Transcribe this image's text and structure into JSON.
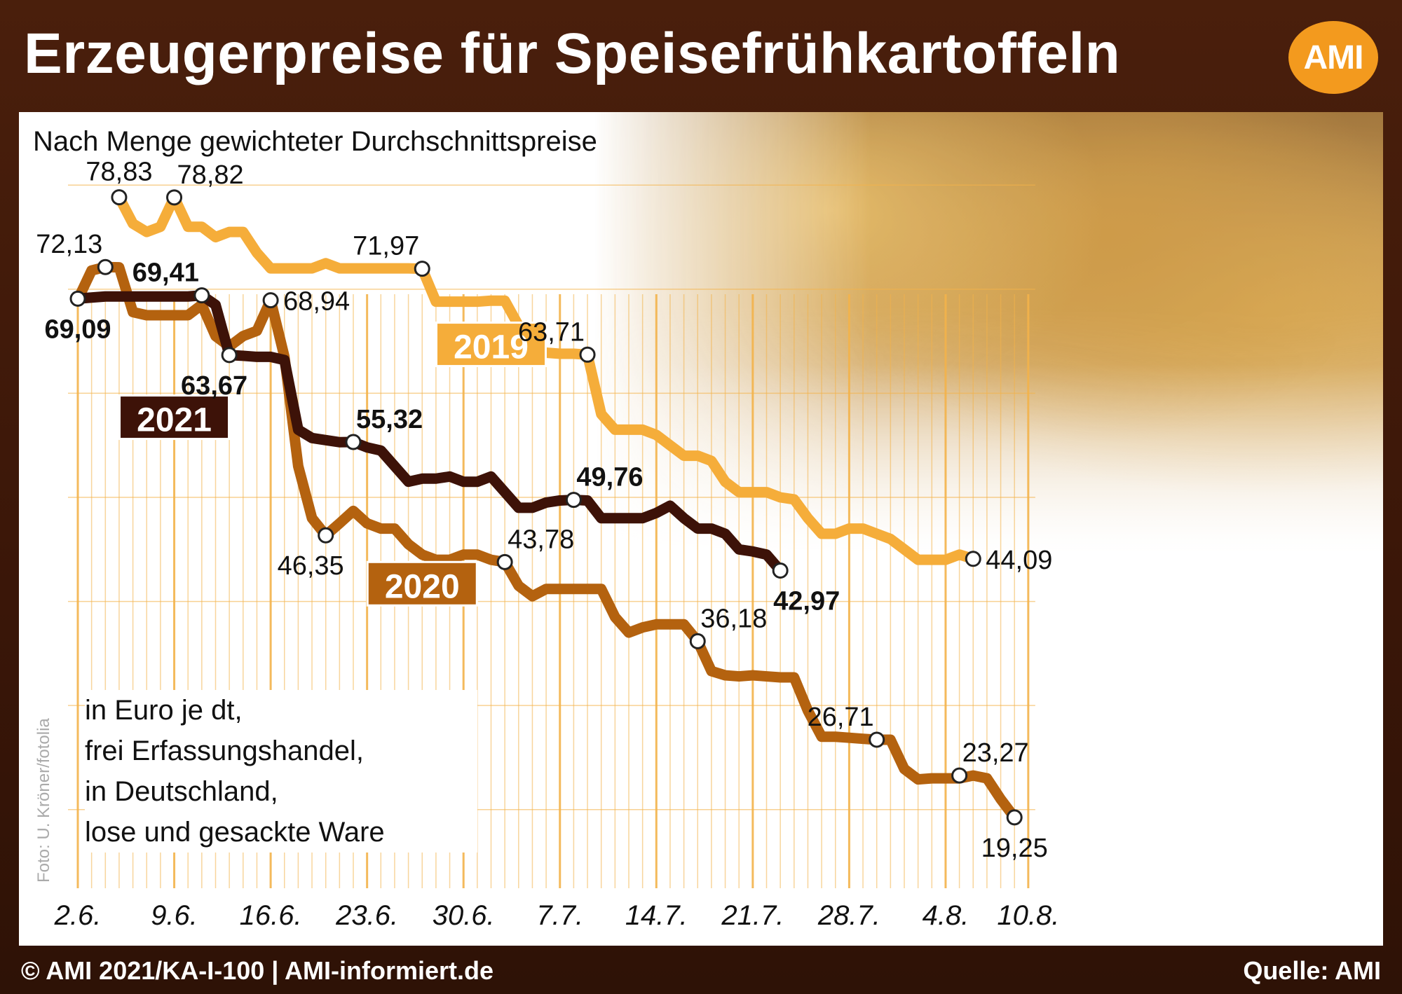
{
  "title": "Erzeugerpreise für Speisefrühkartoffeln",
  "logo": "AMI",
  "subtitle": "Nach Menge gewichteter Durchschnittspreise",
  "unit_note": [
    "in Euro je dt,",
    "frei Erfassungshandel,",
    "in Deutschland,",
    "lose und gesackte Ware"
  ],
  "photo_credit": "Foto: U. Kröner/fotolia",
  "footer_left": "© AMI 2021/KA-I-100 | AMI-informiert.de",
  "footer_right": "Quelle: AMI",
  "colors": {
    "y2019": "#f5ad3a",
    "y2020": "#b4620f",
    "y2021": "#3d1208",
    "grid": "#f3b24a",
    "brand": "#f39a1e"
  },
  "chart_data": {
    "type": "line",
    "title": "Erzeugerpreise für Speisefrühkartoffeln",
    "subtitle": "Nach Menge gewichteter Durchschnittspreise",
    "ylabel": "in Euro je dt",
    "x_tick_labels": [
      "2.6.",
      "9.6.",
      "16.6.",
      "23.6.",
      "30.6.",
      "7.7.",
      "14.7.",
      "21.7.",
      "28.7.",
      "4.8.",
      "10.8."
    ],
    "x_ticks_day": [
      0,
      7,
      14,
      21,
      28,
      35,
      42,
      49,
      56,
      63,
      69
    ],
    "x_unit": "days after 31.5.",
    "ylim": [
      15,
      85
    ],
    "grid": true,
    "series": [
      {
        "name": "2019",
        "label_weight": "normal",
        "x": [
          3,
          4,
          5,
          6,
          7,
          8,
          9,
          10,
          11,
          12,
          13,
          14,
          15,
          16,
          17,
          18,
          19,
          20,
          21,
          22,
          23,
          24,
          25,
          26,
          27,
          28,
          29,
          30,
          31,
          32,
          33,
          34,
          35,
          36,
          37,
          38,
          39,
          40,
          41,
          42,
          43,
          44,
          45,
          46,
          47,
          48,
          49,
          50,
          51,
          52,
          53,
          54,
          55,
          56,
          57,
          58,
          59,
          60,
          61,
          62,
          63,
          64,
          65
        ],
        "values": [
          78.83,
          76.3,
          75.5,
          76.0,
          78.82,
          76.0,
          76.0,
          75.0,
          75.5,
          75.5,
          73.5,
          72.0,
          72.0,
          72.0,
          72.0,
          72.5,
          72.0,
          72.0,
          72.0,
          72.0,
          72.0,
          72.0,
          71.97,
          68.8,
          68.8,
          68.8,
          68.8,
          68.9,
          68.9,
          66.5,
          64.0,
          63.9,
          63.8,
          63.8,
          63.71,
          58.0,
          56.5,
          56.5,
          56.5,
          56.0,
          55.0,
          54.0,
          54.0,
          53.5,
          51.5,
          50.5,
          50.5,
          50.5,
          50.0,
          49.8,
          48.0,
          46.5,
          46.5,
          47.0,
          47.0,
          46.5,
          46.0,
          45.0,
          44.0,
          44.0,
          44.0,
          44.5,
          44.09
        ],
        "labels": [
          {
            "x": 3,
            "y": 78.83,
            "text": "78,83",
            "pos": "above"
          },
          {
            "x": 7,
            "y": 78.82,
            "text": "78,82",
            "pos": "above-right"
          },
          {
            "x": 25,
            "y": 71.97,
            "text": "71,97",
            "pos": "above-left"
          },
          {
            "x": 37,
            "y": 63.71,
            "text": "63,71",
            "pos": "above-left"
          },
          {
            "x": 65,
            "y": 44.09,
            "text": "44,09",
            "pos": "right"
          }
        ],
        "legend_label": {
          "text": "2019",
          "at_x": 30,
          "at_y": 64.5
        }
      },
      {
        "name": "2020",
        "label_weight": "normal",
        "x": [
          0,
          1,
          2,
          3,
          4,
          5,
          6,
          7,
          8,
          9,
          10,
          11,
          12,
          13,
          14,
          15,
          16,
          17,
          18,
          19,
          20,
          21,
          22,
          23,
          24,
          25,
          26,
          27,
          28,
          29,
          30,
          31,
          32,
          33,
          34,
          35,
          36,
          37,
          38,
          39,
          40,
          41,
          42,
          43,
          44,
          45,
          46,
          47,
          48,
          49,
          50,
          51,
          52,
          53,
          54,
          55,
          56,
          57,
          58,
          59,
          60,
          61,
          62,
          63,
          64,
          65,
          66,
          67,
          68
        ],
        "values": [
          69.0,
          71.8,
          72.13,
          72.1,
          67.8,
          67.5,
          67.5,
          67.5,
          67.5,
          68.5,
          65.5,
          64.5,
          65.5,
          66.0,
          68.94,
          63.5,
          53.0,
          48.0,
          46.35,
          47.5,
          48.7,
          47.5,
          47.0,
          47.0,
          45.5,
          44.5,
          44.0,
          44.0,
          44.5,
          44.5,
          44.0,
          43.78,
          41.5,
          40.5,
          41.2,
          41.2,
          41.2,
          41.2,
          41.2,
          38.5,
          37.0,
          37.5,
          37.8,
          37.8,
          37.8,
          36.18,
          33.3,
          32.9,
          32.8,
          32.9,
          32.8,
          32.7,
          32.7,
          29.5,
          27.0,
          27.0,
          26.9,
          26.8,
          26.71,
          26.71,
          23.9,
          22.9,
          23.0,
          23.0,
          23.0,
          23.27,
          23.0,
          21.0,
          19.25
        ],
        "labels": [
          {
            "x": 2,
            "y": 72.13,
            "text": "72,13",
            "pos": "above-left"
          },
          {
            "x": 14,
            "y": 68.94,
            "text": "68,94",
            "pos": "right"
          },
          {
            "x": 18,
            "y": 46.35,
            "text": "46,35",
            "pos": "below-left"
          },
          {
            "x": 31,
            "y": 43.78,
            "text": "43,78",
            "pos": "above-right"
          },
          {
            "x": 45,
            "y": 36.18,
            "text": "36,18",
            "pos": "above-right"
          },
          {
            "x": 58,
            "y": 26.71,
            "text": "26,71",
            "pos": "above-left"
          },
          {
            "x": 64,
            "y": 23.27,
            "text": "23,27",
            "pos": "above-right"
          },
          {
            "x": 68,
            "y": 19.25,
            "text": "19,25",
            "pos": "below"
          }
        ],
        "legend_label": {
          "text": "2020",
          "at_x": 25,
          "at_y": 41.5
        }
      },
      {
        "name": "2021",
        "label_weight": "bold",
        "x": [
          0,
          1,
          2,
          3,
          4,
          5,
          6,
          7,
          8,
          9,
          10,
          11,
          12,
          13,
          14,
          15,
          16,
          17,
          18,
          19,
          20,
          21,
          22,
          23,
          24,
          25,
          26,
          27,
          28,
          29,
          30,
          31,
          32,
          33,
          34,
          35,
          36,
          37,
          38,
          39,
          40,
          41,
          42,
          43,
          44,
          45,
          46,
          47,
          48,
          49,
          50,
          51
        ],
        "values": [
          69.09,
          69.2,
          69.3,
          69.3,
          69.3,
          69.3,
          69.3,
          69.3,
          69.3,
          69.41,
          68.5,
          63.67,
          63.6,
          63.5,
          63.5,
          63.2,
          56.5,
          55.7,
          55.5,
          55.3,
          55.32,
          54.8,
          54.5,
          53.0,
          51.5,
          51.8,
          51.8,
          52.0,
          51.5,
          51.5,
          52.0,
          50.5,
          49.0,
          49.0,
          49.5,
          49.7,
          49.76,
          49.7,
          48.0,
          48.0,
          48.0,
          48.0,
          48.5,
          49.2,
          48.0,
          47.0,
          47.0,
          46.5,
          45.0,
          44.8,
          44.5,
          42.97
        ],
        "labels": [
          {
            "x": 0,
            "y": 69.09,
            "text": "69,09",
            "pos": "below"
          },
          {
            "x": 9,
            "y": 69.41,
            "text": "69,41",
            "pos": "above-left"
          },
          {
            "x": 11,
            "y": 63.67,
            "text": "63,67",
            "pos": "below-left"
          },
          {
            "x": 20,
            "y": 55.32,
            "text": "55,32",
            "pos": "above-right"
          },
          {
            "x": 36,
            "y": 49.76,
            "text": "49,76",
            "pos": "above-right"
          },
          {
            "x": 51,
            "y": 42.97,
            "text": "42,97",
            "pos": "below-right"
          }
        ],
        "legend_label": {
          "text": "2021",
          "at_x": 7,
          "at_y": 57.5
        }
      }
    ]
  }
}
